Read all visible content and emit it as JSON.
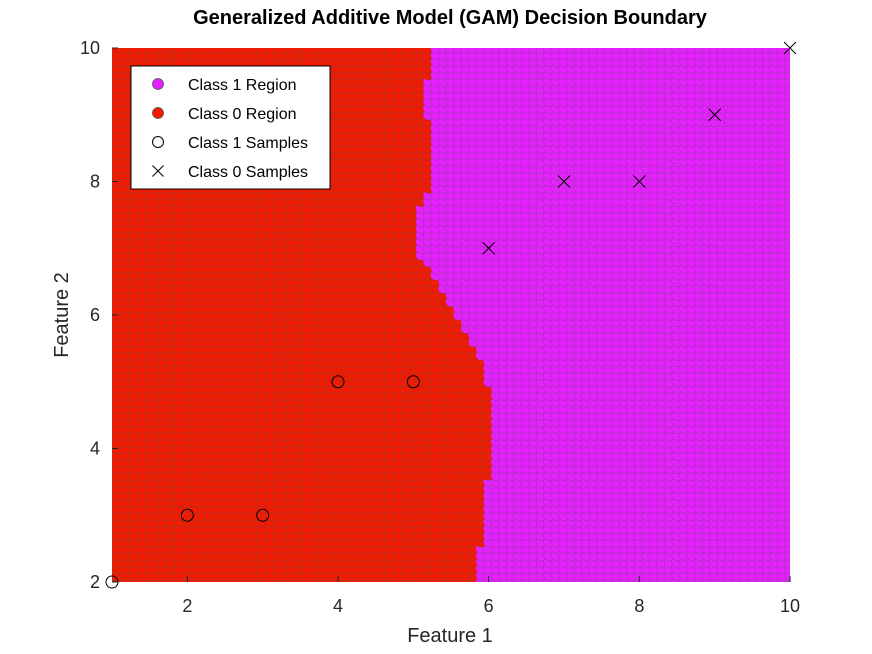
{
  "chart_data": {
    "type": "scatter",
    "title": "Generalized Additive Model (GAM) Decision Boundary",
    "xlabel": "Feature 1",
    "ylabel": "Feature 2",
    "xlim": [
      1,
      10
    ],
    "ylim": [
      2,
      10
    ],
    "xticks": [
      2,
      4,
      6,
      8,
      10
    ],
    "yticks": [
      2,
      4,
      6,
      8,
      10
    ],
    "grid": false,
    "legend_position": "top-left",
    "colors": {
      "class1_region": "#e620ff",
      "class0_region": "#f21a00",
      "marker_edge": "#555555",
      "samples": "#000000"
    },
    "boundary": {
      "description_points": [
        [
          2.0,
          5.9
        ],
        [
          2.5,
          5.9
        ],
        [
          3.0,
          6.0
        ],
        [
          3.5,
          6.0
        ],
        [
          4.0,
          6.05
        ],
        [
          4.5,
          6.05
        ],
        [
          5.0,
          6.0
        ],
        [
          5.5,
          5.85
        ],
        [
          6.0,
          5.6
        ],
        [
          6.5,
          5.35
        ],
        [
          6.8,
          5.15
        ],
        [
          7.0,
          5.05
        ],
        [
          7.5,
          5.05
        ],
        [
          8.0,
          5.25
        ],
        [
          8.5,
          5.25
        ],
        [
          9.0,
          5.2
        ],
        [
          9.5,
          5.2
        ],
        [
          10.0,
          5.25
        ]
      ]
    },
    "series": [
      {
        "name": "Class 1 Region",
        "marker": "filled-circle",
        "color": "#e620ff"
      },
      {
        "name": "Class 0 Region",
        "marker": "filled-circle",
        "color": "#f21a00"
      },
      {
        "name": "Class 1 Samples",
        "marker": "open-circle",
        "points": [
          [
            1,
            2
          ],
          [
            2,
            3
          ],
          [
            3,
            3
          ],
          [
            4,
            5
          ],
          [
            5,
            5
          ]
        ]
      },
      {
        "name": "Class 0 Samples",
        "marker": "x",
        "points": [
          [
            6,
            7
          ],
          [
            7,
            8
          ],
          [
            8,
            8
          ],
          [
            9,
            9
          ],
          [
            10,
            10
          ]
        ]
      }
    ]
  }
}
